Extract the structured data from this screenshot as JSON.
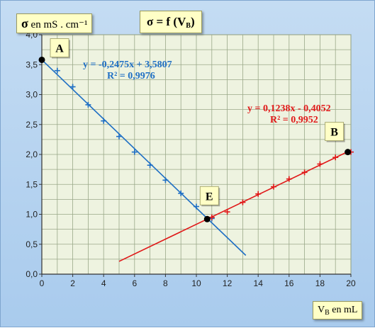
{
  "title_text": "σ = f (V",
  "title_sub": "B",
  "title_end": ")",
  "ylabel_sym": "σ",
  "ylabel_text": " en mS . cm⁻¹",
  "xlabel_text": "V",
  "xlabel_sub": "B",
  "xlabel_end": " en mL",
  "colors": {
    "blue": "#1f6fc4",
    "red": "#e01818",
    "plot_bg": "#eef3e0",
    "grid": "#9aa889",
    "label_bg": "#ffffc6"
  },
  "chart_data": {
    "type": "scatter",
    "xlim": [
      0,
      20
    ],
    "ylim": [
      0,
      4
    ],
    "x_ticks": [
      0,
      2,
      4,
      6,
      8,
      10,
      12,
      14,
      16,
      18,
      20
    ],
    "y_ticks": [
      "0,0",
      "0,5",
      "1,0",
      "1,5",
      "2,0",
      "2,5",
      "3,0",
      "3,5",
      "4,0"
    ],
    "grid": true,
    "series": [
      {
        "color": "#1f6fc4",
        "marker": "plus",
        "x": [
          0,
          1,
          2,
          3,
          4,
          5,
          6,
          7,
          8,
          9,
          10,
          11
        ],
        "y": [
          3.58,
          3.4,
          3.13,
          2.83,
          2.56,
          2.3,
          2.04,
          1.82,
          1.57,
          1.35,
          1.13,
          0.93
        ],
        "trend": {
          "slope": -0.2475,
          "intercept": 3.5807,
          "x_range": [
            0,
            13.2
          ]
        },
        "equation": "y = -0,2475x + 3,5807",
        "r2": "R² = 0,9976"
      },
      {
        "color": "#e01818",
        "marker": "plus",
        "x": [
          11,
          12,
          13,
          14,
          15,
          16,
          17,
          18,
          19,
          20
        ],
        "y": [
          0.95,
          1.04,
          1.2,
          1.34,
          1.46,
          1.59,
          1.7,
          1.84,
          1.95,
          2.04
        ],
        "trend": {
          "slope": 0.1238,
          "intercept": -0.4052,
          "x_range": [
            5,
            20
          ]
        },
        "equation": "y = 0,1238x - 0,4052",
        "r2": "R² = 0,9952"
      }
    ],
    "points": [
      {
        "label": "A",
        "x": 0,
        "y": 3.58
      },
      {
        "label": "B",
        "x": 19.8,
        "y": 2.04
      },
      {
        "label": "E",
        "x": 10.7,
        "y": 0.92
      }
    ]
  }
}
